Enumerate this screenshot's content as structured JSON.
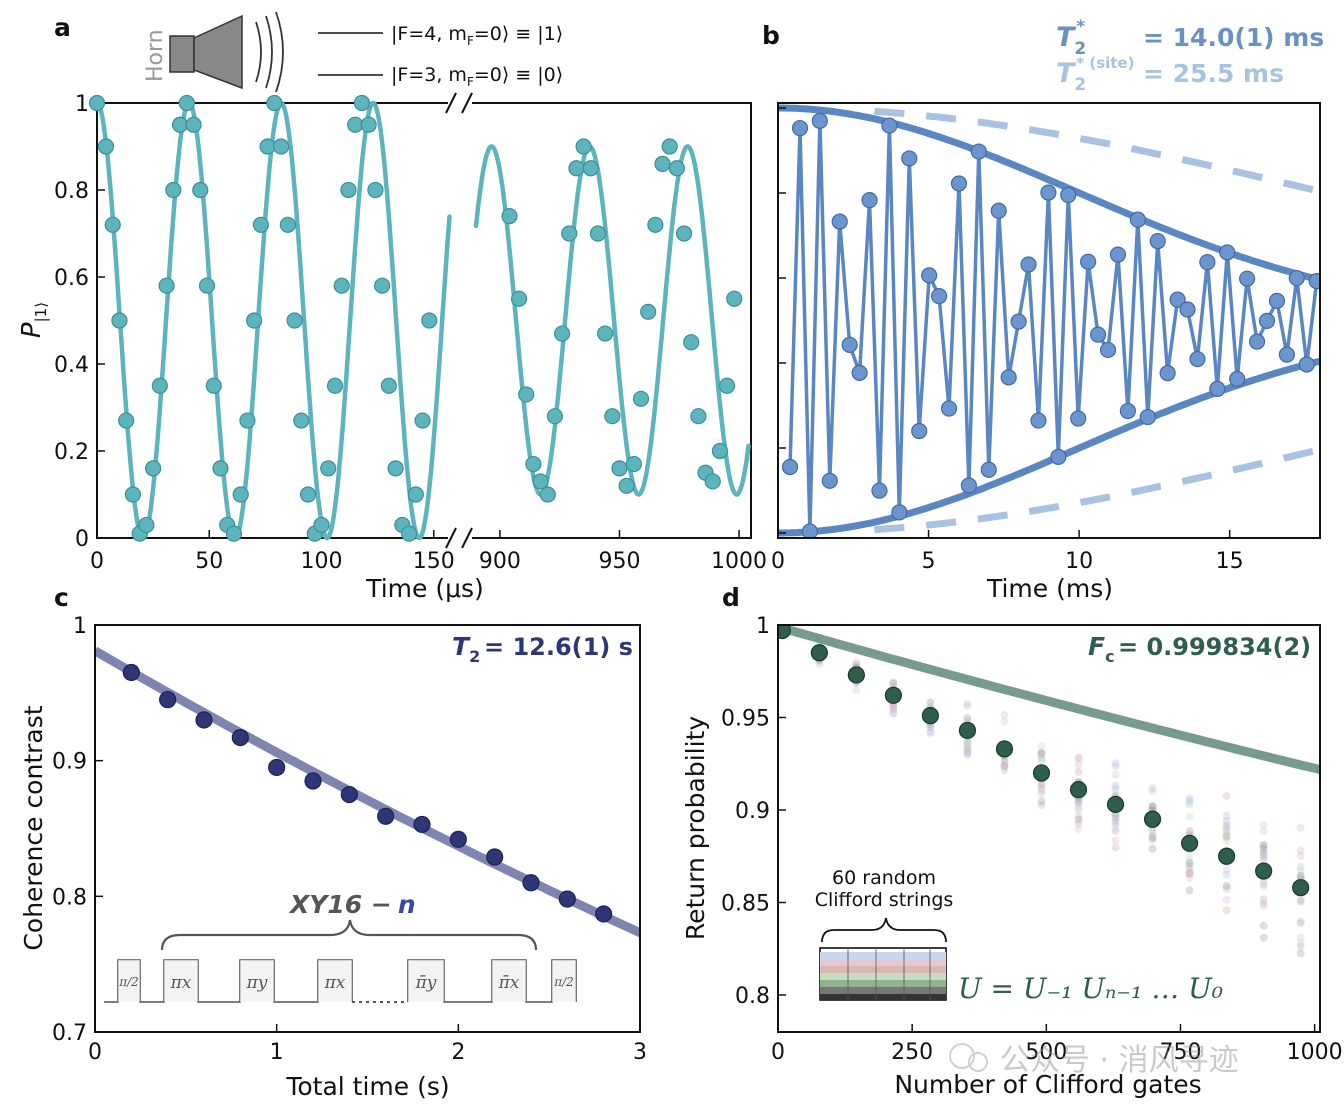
{
  "panels": {
    "a": {
      "label": "a"
    },
    "b": {
      "label": "b"
    },
    "c": {
      "label": "c"
    },
    "d": {
      "label": "d"
    }
  },
  "legend_a": {
    "horn": "Horn",
    "level1": "|F=4, m",
    "level1_sub": "F",
    "level1_tail": "=0⟩ ≡ |1⟩",
    "level0": "|F=3, m",
    "level0_sub": "F",
    "level0_tail": "=0⟩ ≡ |0⟩"
  },
  "annotations": {
    "b_t2star_sym": "T",
    "b_t2star_sub": "2",
    "b_t2star_sup": "*",
    "b_t2star_val": "= 14.0(1) ms",
    "b_site_sym": "T",
    "b_site_sub": "2",
    "b_site_sup": "* (site)",
    "b_site_val": "= 25.5 ms",
    "c_t2_sym": "T",
    "c_t2_sub": "2",
    "c_t2_val": "= 12.6(1) s",
    "c_seq_label": "XY16 −",
    "c_seq_n": "n",
    "c_pulses": [
      "π/2",
      "πx",
      "πy",
      "πx",
      "π̄y",
      "π̄x",
      "π/2"
    ],
    "d_fc_sym": "F",
    "d_fc_sub": "c",
    "d_fc_val": "= 0.999834(2)",
    "d_inset_line1": "60 random",
    "d_inset_line2": "Clifford strings",
    "d_formula": "U = U₋₁ Uₙ₋₁ … U₀"
  },
  "watermark": "公众号 · 消风寻迹",
  "colors": {
    "teal": "#5eb4bd",
    "blue": "#5a86c2",
    "lightblue": "#a9c2e1",
    "navy": "#2f3675",
    "navy_fit": "#6a6fa3",
    "green": "#2f5e4c",
    "green_fit": "#5f8a78",
    "legend_text_b": "#6b90c4",
    "legend_text_b2": "#a9c2e1"
  },
  "chart_data": [
    {
      "panel": "a",
      "type": "line",
      "title": "",
      "xlabel": "Time (μs)",
      "ylabel": "P|1⟩",
      "ylim": [
        0,
        1
      ],
      "segments": [
        {
          "xlim": [
            0,
            155
          ],
          "xticks": [
            0,
            50,
            100,
            150
          ],
          "fit_range": [
            0,
            157
          ]
        },
        {
          "xlim": [
            890,
            1005
          ],
          "xticks": [
            900,
            950,
            1000
          ],
          "fit_range": [
            890,
            1004
          ]
        }
      ],
      "model": {
        "form": "0.5 + 0.5*cos(2*pi*x/period)",
        "period_us": 41.0
      },
      "series": [
        {
          "name": "data",
          "x": [
            0,
            4,
            7,
            10,
            13,
            16,
            19,
            22,
            25,
            28,
            31,
            34,
            37,
            40,
            43,
            46,
            49,
            52,
            55,
            58,
            61,
            64,
            67,
            70,
            73,
            76,
            79,
            82,
            85,
            88,
            91,
            94,
            97,
            100,
            103,
            106,
            109,
            112,
            115,
            118,
            121,
            124,
            127,
            130,
            133,
            136,
            139,
            142,
            145,
            148,
            904,
            908,
            911,
            914,
            917,
            920,
            923,
            926,
            929,
            932,
            935,
            938,
            941,
            944,
            947,
            950,
            953,
            956,
            959,
            962,
            965,
            968,
            971,
            974,
            977,
            980,
            983,
            986,
            989,
            992,
            995,
            998
          ],
          "y": [
            1.0,
            0.9,
            0.72,
            0.5,
            0.27,
            0.1,
            0.01,
            0.03,
            0.16,
            0.35,
            0.58,
            0.8,
            0.95,
            1.0,
            0.95,
            0.8,
            0.58,
            0.35,
            0.16,
            0.03,
            0.01,
            0.1,
            0.27,
            0.5,
            0.72,
            0.9,
            1.0,
            0.9,
            0.72,
            0.5,
            0.27,
            0.1,
            0.01,
            0.03,
            0.16,
            0.35,
            0.58,
            0.8,
            0.95,
            1.0,
            0.95,
            0.8,
            0.58,
            0.35,
            0.16,
            0.03,
            0.01,
            0.1,
            0.27,
            0.5,
            0.74,
            0.55,
            0.33,
            0.17,
            0.13,
            0.1,
            0.28,
            0.47,
            0.7,
            0.85,
            0.9,
            0.85,
            0.7,
            0.47,
            0.28,
            0.16,
            0.12,
            0.17,
            0.32,
            0.52,
            0.72,
            0.86,
            0.9,
            0.85,
            0.7,
            0.45,
            0.28,
            0.15,
            0.13,
            0.2,
            0.35,
            0.55
          ]
        }
      ]
    },
    {
      "panel": "b",
      "type": "line",
      "xlabel": "Time (ms)",
      "ylabel": "",
      "xlim": [
        0,
        18
      ],
      "ylim": [
        0,
        1
      ],
      "xticks": [
        0,
        5,
        10,
        15
      ],
      "model": {
        "form": "0.5 + 0.5*exp(-(t/T2)^2)*cos(2*pi*t/period)",
        "T2_ms": 14.0,
        "period_ms": 0.75
      },
      "series": [
        {
          "name": "data",
          "sample_spacing_ms": 0.33,
          "t_start_ms": 0.4,
          "t_end_ms": 18.0
        },
        {
          "name": "envelope T2* = 14.0 ms",
          "T2_ms": 14.0
        },
        {
          "name": "envelope T2*(site) = 25.5 ms",
          "T2_ms": 25.5,
          "style": "dashed"
        }
      ]
    },
    {
      "panel": "c",
      "type": "scatter",
      "xlabel": "Total time (s)",
      "ylabel": "Coherence contrast",
      "xlim": [
        0,
        3
      ],
      "ylim": [
        0.7,
        1
      ],
      "xticks": [
        0,
        1,
        2,
        3
      ],
      "yticks": [
        0.7,
        0.8,
        0.9,
        1
      ],
      "fit": {
        "form": "0.981*exp(-t/T2)",
        "T2_s": 12.6
      },
      "series": [
        {
          "name": "data",
          "x": [
            0.2,
            0.4,
            0.6,
            0.8,
            1.0,
            1.2,
            1.4,
            1.6,
            1.8,
            2.0,
            2.2,
            2.4,
            2.6,
            2.8
          ],
          "y": [
            0.965,
            0.945,
            0.93,
            0.917,
            0.895,
            0.885,
            0.875,
            0.859,
            0.853,
            0.842,
            0.829,
            0.81,
            0.798,
            0.787
          ]
        }
      ]
    },
    {
      "panel": "d",
      "type": "scatter",
      "xlabel": "Number of Clifford gates",
      "ylabel": "Return probability",
      "xlim": [
        0,
        1010
      ],
      "ylim": [
        0.78,
        1.0
      ],
      "xticks": [
        0,
        250,
        500,
        750,
        1000
      ],
      "yticks": [
        0.8,
        0.85,
        0.9,
        0.95,
        1
      ],
      "fit": {
        "form": "0.5 + 0.5*Fc^n",
        "Fc": 0.999834
      },
      "series": [
        {
          "name": "mean",
          "x": [
            8,
            77,
            146,
            215,
            284,
            353,
            422,
            491,
            560,
            629,
            698,
            767,
            836,
            905,
            974
          ],
          "y": [
            0.997,
            0.985,
            0.973,
            0.962,
            0.951,
            0.943,
            0.933,
            0.92,
            0.911,
            0.903,
            0.895,
            0.882,
            0.875,
            0.867,
            0.858
          ]
        }
      ]
    }
  ]
}
